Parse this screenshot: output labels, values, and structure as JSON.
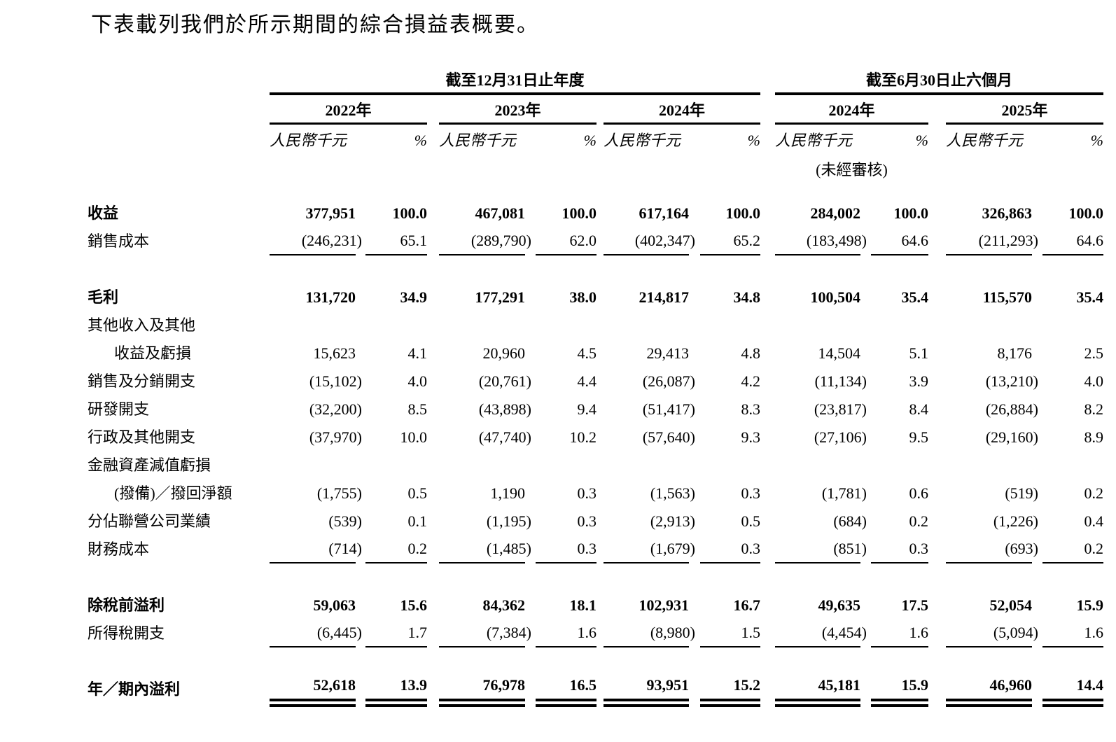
{
  "title": "下表載列我們於所示期間的綜合損益表概要。",
  "table": {
    "groups": [
      {
        "label": "截至12月31日止年度"
      },
      {
        "label": "截至6月30日止六個月"
      }
    ],
    "years": [
      "2022年",
      "2023年",
      "2024年",
      "2024年",
      "2025年"
    ],
    "unit_label": "人民幣千元",
    "percent_label": "%",
    "unaudited": "(未經審核)",
    "rows": [
      {
        "label": "收益",
        "style": "bold",
        "values": [
          "377,951",
          "100.0",
          "467,081",
          "100.0",
          "617,164",
          "100.0",
          "284,002",
          "100.0",
          "326,863",
          "100.0"
        ]
      },
      {
        "label": "銷售成本",
        "underline": "single",
        "values": [
          "(246,231)",
          "65.1",
          "(289,790)",
          "62.0",
          "(402,347)",
          "65.2",
          "(183,498)",
          "64.6",
          "(211,293)",
          "64.6"
        ]
      },
      {
        "style": "spacer"
      },
      {
        "label": "毛利",
        "style": "bold",
        "values": [
          "131,720",
          "34.9",
          "177,291",
          "38.0",
          "214,817",
          "34.8",
          "100,504",
          "35.4",
          "115,570",
          "35.4"
        ]
      },
      {
        "label": "其他收入及其他",
        "values": []
      },
      {
        "label": "收益及虧損",
        "style": "indent",
        "values": [
          "15,623",
          "4.1",
          "20,960",
          "4.5",
          "29,413",
          "4.8",
          "14,504",
          "5.1",
          "8,176",
          "2.5"
        ]
      },
      {
        "label": "銷售及分銷開支",
        "values": [
          "(15,102)",
          "4.0",
          "(20,761)",
          "4.4",
          "(26,087)",
          "4.2",
          "(11,134)",
          "3.9",
          "(13,210)",
          "4.0"
        ]
      },
      {
        "label": "研發開支",
        "values": [
          "(32,200)",
          "8.5",
          "(43,898)",
          "9.4",
          "(51,417)",
          "8.3",
          "(23,817)",
          "8.4",
          "(26,884)",
          "8.2"
        ]
      },
      {
        "label": "行政及其他開支",
        "values": [
          "(37,970)",
          "10.0",
          "(47,740)",
          "10.2",
          "(57,640)",
          "9.3",
          "(27,106)",
          "9.5",
          "(29,160)",
          "8.9"
        ]
      },
      {
        "label": "金融資產減值虧損",
        "values": []
      },
      {
        "label": "(撥備)／撥回淨額",
        "style": "indent",
        "values": [
          "(1,755)",
          "0.5",
          "1,190",
          "0.3",
          "(1,563)",
          "0.3",
          "(1,781)",
          "0.6",
          "(519)",
          "0.2"
        ]
      },
      {
        "label": "分佔聯營公司業績",
        "values": [
          "(539)",
          "0.1",
          "(1,195)",
          "0.3",
          "(2,913)",
          "0.5",
          "(684)",
          "0.2",
          "(1,226)",
          "0.4"
        ]
      },
      {
        "label": "財務成本",
        "underline": "single",
        "values": [
          "(714)",
          "0.2",
          "(1,485)",
          "0.3",
          "(1,679)",
          "0.3",
          "(851)",
          "0.3",
          "(693)",
          "0.2"
        ]
      },
      {
        "style": "spacer"
      },
      {
        "label": "除稅前溢利",
        "style": "bold",
        "values": [
          "59,063",
          "15.6",
          "84,362",
          "18.1",
          "102,931",
          "16.7",
          "49,635",
          "17.5",
          "52,054",
          "15.9"
        ]
      },
      {
        "label": "所得稅開支",
        "underline": "single",
        "values": [
          "(6,445)",
          "1.7",
          "(7,384)",
          "1.6",
          "(8,980)",
          "1.5",
          "(4,454)",
          "1.6",
          "(5,094)",
          "1.6"
        ]
      },
      {
        "style": "spacer"
      },
      {
        "label": "年／期內溢利",
        "style": "bold",
        "underline": "double",
        "values": [
          "52,618",
          "13.9",
          "76,978",
          "16.5",
          "93,951",
          "15.2",
          "45,181",
          "15.9",
          "46,960",
          "14.4"
        ]
      }
    ]
  }
}
